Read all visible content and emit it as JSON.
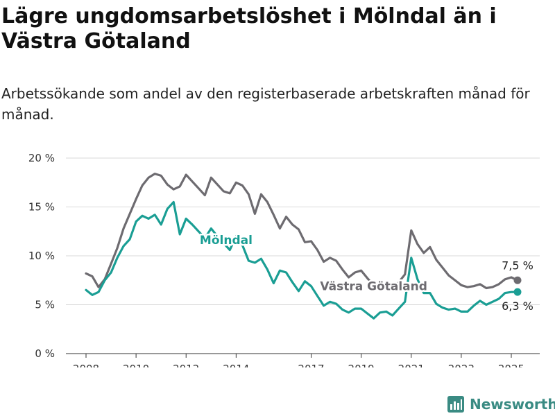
{
  "title": "Lägre ungdomsarbetslöshet i Mölndal än i Västra Götaland",
  "subtitle": "Arbetssökande som andel av den registerbaserade arbetskraften månad för månad.",
  "brand": {
    "name": "Newsworthy",
    "icon": "bar-chart-logo-icon"
  },
  "chart_data": {
    "type": "line",
    "y_ticks": [
      "0 %",
      "5 %",
      "10 %",
      "15 %",
      "20 %"
    ],
    "y_tick_values": [
      0,
      5,
      10,
      15,
      20
    ],
    "x_ticks": [
      "2008",
      "2010",
      "2012",
      "2014",
      "2017",
      "2019",
      "2021",
      "2023",
      "2025"
    ],
    "x_tick_values": [
      2008.0,
      2010.0,
      2012.0,
      2014.0,
      2017.0,
      2019.0,
      2021.0,
      2023.0,
      2025.0
    ],
    "xlim": [
      2008.0,
      2025.25
    ],
    "ylim": [
      0,
      20
    ],
    "grid": true,
    "series": [
      {
        "name": "Västra Götaland",
        "color": "#6d6b70",
        "end_label": "7,5 %",
        "points": [
          [
            2008.0,
            8.2
          ],
          [
            2008.25,
            7.9
          ],
          [
            2008.5,
            6.8
          ],
          [
            2008.75,
            7.6
          ],
          [
            2009.0,
            9.2
          ],
          [
            2009.25,
            10.8
          ],
          [
            2009.5,
            12.8
          ],
          [
            2009.75,
            14.3
          ],
          [
            2010.0,
            15.8
          ],
          [
            2010.25,
            17.2
          ],
          [
            2010.5,
            18.0
          ],
          [
            2010.75,
            18.4
          ],
          [
            2011.0,
            18.2
          ],
          [
            2011.25,
            17.3
          ],
          [
            2011.5,
            16.8
          ],
          [
            2011.75,
            17.1
          ],
          [
            2012.0,
            18.3
          ],
          [
            2012.25,
            17.6
          ],
          [
            2012.5,
            16.9
          ],
          [
            2012.75,
            16.2
          ],
          [
            2013.0,
            18.0
          ],
          [
            2013.25,
            17.3
          ],
          [
            2013.5,
            16.6
          ],
          [
            2013.75,
            16.4
          ],
          [
            2014.0,
            17.5
          ],
          [
            2014.25,
            17.2
          ],
          [
            2014.5,
            16.3
          ],
          [
            2014.75,
            14.3
          ],
          [
            2015.0,
            16.3
          ],
          [
            2015.25,
            15.5
          ],
          [
            2015.5,
            14.2
          ],
          [
            2015.75,
            12.8
          ],
          [
            2016.0,
            14.0
          ],
          [
            2016.25,
            13.2
          ],
          [
            2016.5,
            12.7
          ],
          [
            2016.75,
            11.4
          ],
          [
            2017.0,
            11.5
          ],
          [
            2017.25,
            10.6
          ],
          [
            2017.5,
            9.4
          ],
          [
            2017.75,
            9.8
          ],
          [
            2018.0,
            9.5
          ],
          [
            2018.25,
            8.6
          ],
          [
            2018.5,
            7.8
          ],
          [
            2018.75,
            8.3
          ],
          [
            2019.0,
            8.5
          ],
          [
            2019.25,
            7.7
          ],
          [
            2019.5,
            7.0
          ],
          [
            2019.75,
            7.3
          ],
          [
            2020.0,
            7.1
          ],
          [
            2020.25,
            6.5
          ],
          [
            2020.5,
            7.3
          ],
          [
            2020.75,
            8.1
          ],
          [
            2021.0,
            12.6
          ],
          [
            2021.25,
            11.2
          ],
          [
            2021.5,
            10.3
          ],
          [
            2021.75,
            10.9
          ],
          [
            2022.0,
            9.6
          ],
          [
            2022.25,
            8.8
          ],
          [
            2022.5,
            8.0
          ],
          [
            2022.75,
            7.5
          ],
          [
            2023.0,
            7.0
          ],
          [
            2023.25,
            6.8
          ],
          [
            2023.5,
            6.9
          ],
          [
            2023.75,
            7.1
          ],
          [
            2024.0,
            6.7
          ],
          [
            2024.25,
            6.8
          ],
          [
            2024.5,
            7.1
          ],
          [
            2024.75,
            7.6
          ],
          [
            2025.0,
            7.8
          ],
          [
            2025.25,
            7.5
          ]
        ]
      },
      {
        "name": "Mölndal",
        "color": "#1a9e94",
        "end_label": "6,3 %",
        "points": [
          [
            2008.0,
            6.5
          ],
          [
            2008.25,
            6.0
          ],
          [
            2008.5,
            6.3
          ],
          [
            2008.75,
            7.5
          ],
          [
            2009.0,
            8.3
          ],
          [
            2009.25,
            9.8
          ],
          [
            2009.5,
            11.0
          ],
          [
            2009.75,
            11.7
          ],
          [
            2010.0,
            13.5
          ],
          [
            2010.25,
            14.1
          ],
          [
            2010.5,
            13.8
          ],
          [
            2010.75,
            14.2
          ],
          [
            2011.0,
            13.2
          ],
          [
            2011.25,
            14.8
          ],
          [
            2011.5,
            15.5
          ],
          [
            2011.75,
            12.2
          ],
          [
            2012.0,
            13.8
          ],
          [
            2012.25,
            13.2
          ],
          [
            2012.5,
            12.5
          ],
          [
            2012.75,
            11.8
          ],
          [
            2013.0,
            12.8
          ],
          [
            2013.25,
            12.0
          ],
          [
            2013.5,
            11.3
          ],
          [
            2013.75,
            10.6
          ],
          [
            2014.0,
            12.0
          ],
          [
            2014.25,
            11.1
          ],
          [
            2014.5,
            9.5
          ],
          [
            2014.75,
            9.3
          ],
          [
            2015.0,
            9.7
          ],
          [
            2015.25,
            8.6
          ],
          [
            2015.5,
            7.2
          ],
          [
            2015.75,
            8.5
          ],
          [
            2016.0,
            8.3
          ],
          [
            2016.25,
            7.3
          ],
          [
            2016.5,
            6.4
          ],
          [
            2016.75,
            7.4
          ],
          [
            2017.0,
            6.9
          ],
          [
            2017.25,
            5.9
          ],
          [
            2017.5,
            4.9
          ],
          [
            2017.75,
            5.3
          ],
          [
            2018.0,
            5.1
          ],
          [
            2018.25,
            4.5
          ],
          [
            2018.5,
            4.2
          ],
          [
            2018.75,
            4.6
          ],
          [
            2019.0,
            4.6
          ],
          [
            2019.25,
            4.1
          ],
          [
            2019.5,
            3.6
          ],
          [
            2019.75,
            4.2
          ],
          [
            2020.0,
            4.3
          ],
          [
            2020.25,
            3.9
          ],
          [
            2020.5,
            4.6
          ],
          [
            2020.75,
            5.3
          ],
          [
            2021.0,
            9.8
          ],
          [
            2021.25,
            7.6
          ],
          [
            2021.5,
            6.2
          ],
          [
            2021.75,
            6.2
          ],
          [
            2022.0,
            5.1
          ],
          [
            2022.25,
            4.7
          ],
          [
            2022.5,
            4.5
          ],
          [
            2022.75,
            4.6
          ],
          [
            2023.0,
            4.3
          ],
          [
            2023.25,
            4.3
          ],
          [
            2023.5,
            4.9
          ],
          [
            2023.75,
            5.4
          ],
          [
            2024.0,
            5.0
          ],
          [
            2024.25,
            5.3
          ],
          [
            2024.5,
            5.6
          ],
          [
            2024.75,
            6.2
          ],
          [
            2025.0,
            6.3
          ],
          [
            2025.25,
            6.3
          ]
        ]
      }
    ],
    "annotations": [
      {
        "series": "Mölndal",
        "text": "Mölndal",
        "x": 2013.6,
        "y": 11.2
      },
      {
        "series": "Västra Götaland",
        "text": "Västra Götaland",
        "x": 2019.5,
        "y": 6.5
      }
    ]
  }
}
